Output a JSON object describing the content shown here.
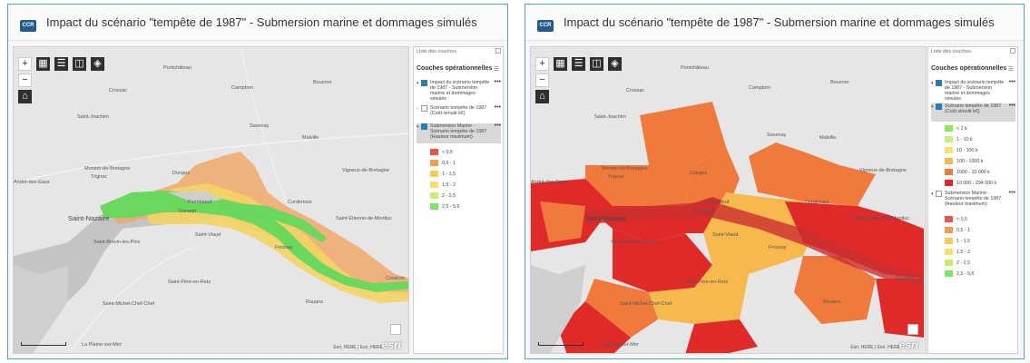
{
  "panels": [
    {
      "title": "Impact du scénario \"tempête de 1987\" - Submersion marine et dommages simulés",
      "logo_text": "CCR",
      "map": {
        "places": [
          "Pontchâteau",
          "Crossac",
          "Campbon",
          "Bouvron",
          "Saint-Joachim",
          "Savenay",
          "Malville",
          "Montoir-de-Bretagne",
          "Trignac",
          "Donges",
          "Vigneux-de-Bretagne",
          "André-des-Eaux",
          "Saint-Nazaire",
          "Paimboeuf",
          "Corsept",
          "Cordemais",
          "Saint-Étienne-de-Montluc",
          "Saint-Brevin-les-Pins",
          "Saint-Viaud",
          "Frossay",
          "Saint-Père-en-Retz",
          "Couëron",
          "Saint-Michel-Chef-Chef",
          "Rouans",
          "La Plaine-sur-Mer"
        ],
        "attribution": "Esri, HERE | Esri, HERE",
        "esri_text": "esri"
      },
      "legend": {
        "panel_title": "Liste des couches",
        "heading": "Couches opérationnelles",
        "layers": [
          {
            "label": "Impact du scénario tempête de 1987 - Submersion marine et dommages simulés",
            "checked": true
          },
          {
            "label": "Scénario tempête de 1987 (Coût simulé k€)",
            "checked": false
          },
          {
            "label": "Submersion Marine - Scénario tempête de 1987 (Hauteur maximum)",
            "checked": true
          }
        ],
        "classes": [
          {
            "label": "< 0,5",
            "color": "#e8534c"
          },
          {
            "label": "0,5 - 1",
            "color": "#f59a4e"
          },
          {
            "label": "1 - 1,5",
            "color": "#f7c955"
          },
          {
            "label": "1,5 - 2",
            "color": "#f5e26b"
          },
          {
            "label": "2 - 2,5",
            "color": "#c8ec6a"
          },
          {
            "label": "2,5 - 5,6",
            "color": "#79e863"
          }
        ]
      }
    },
    {
      "title": "Impact du scénario \"tempête de 1987\" - Submersion marine et dommages simulés",
      "logo_text": "CCR",
      "map": {
        "places": [
          "Pontchâteau",
          "Crossac",
          "Campbon",
          "Bouvron",
          "Saint-Joachim",
          "Savenay",
          "Malville",
          "Montoir-de-Bretagne",
          "Trignac",
          "Donges",
          "Vigneux-de-Bretagne",
          "André-des-Eaux",
          "Saint-Nazaire",
          "Paimboeuf",
          "Corsept",
          "Cordemais",
          "Saint-Étienne-de-Montluc",
          "Saint-Brevin-les-Pins",
          "Saint-Viaud",
          "Frossay",
          "Saint-Père-en-Retz",
          "Couëron",
          "Saint-Michel-Chef-Chef",
          "Rouans",
          "La Plaine-sur-Mer"
        ],
        "attribution": "Esri, HERE | Esri, HERE",
        "esri_text": "esri"
      },
      "legend": {
        "panel_title": "Liste des couches",
        "heading": "Couches opérationnelles",
        "layers": [
          {
            "label": "Impact du scénario tempête de 1987 - Submersion marine et dommages simulés",
            "checked": true
          },
          {
            "label": "Scénario tempête de 1987 (Coût simulé k€)",
            "checked": true
          },
          {
            "label": "Submersion Marine - Scénario tempête de 1987 (Hauteur maximum)",
            "checked": false
          }
        ],
        "cost_classes": [
          {
            "label": "< 1 k",
            "color": "#8ee84f"
          },
          {
            "label": "1 - 10 k",
            "color": "#c8ec7a"
          },
          {
            "label": "10 - 100 k",
            "color": "#f5e36b"
          },
          {
            "label": "100 - 1000 k",
            "color": "#f7b84d"
          },
          {
            "label": "1000 - 10 000 k",
            "color": "#f07a3c"
          },
          {
            "label": "10 000 - 294 000 k",
            "color": "#e02a2a"
          }
        ],
        "classes": [
          {
            "label": "< 0,5",
            "color": "#e8534c"
          },
          {
            "label": "0,5 - 1",
            "color": "#f59a4e"
          },
          {
            "label": "1 - 1,5",
            "color": "#f7c955"
          },
          {
            "label": "1,5 - 2",
            "color": "#f5e26b"
          },
          {
            "label": "2 - 2,5",
            "color": "#c8ec6a"
          },
          {
            "label": "2,5 - 5,6",
            "color": "#79e863"
          }
        ]
      }
    }
  ]
}
